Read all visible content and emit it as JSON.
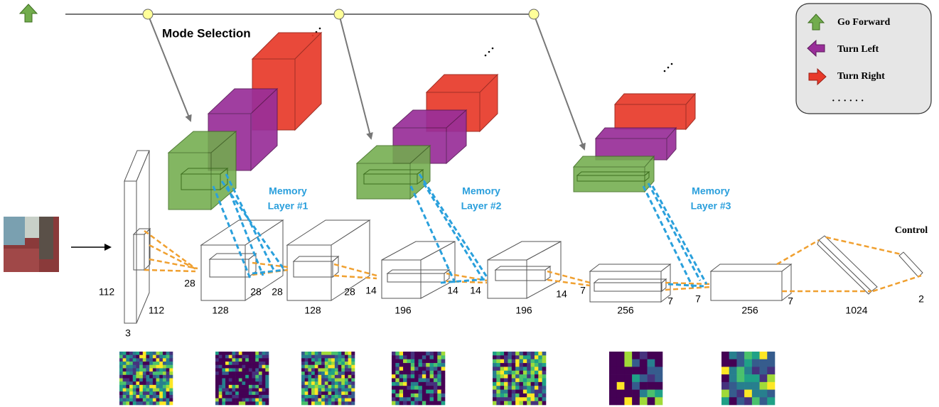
{
  "header": {
    "mode_selection": "Mode Selection"
  },
  "legend": {
    "items": [
      {
        "label": "Go Forward"
      },
      {
        "label": "Turn Left"
      },
      {
        "label": "Turn Right"
      }
    ],
    "more": "· · · · · ·"
  },
  "memory_layers": [
    {
      "line1": "Memory",
      "line2": "Layer #1"
    },
    {
      "line1": "Memory",
      "line2": "Layer #2"
    },
    {
      "line1": "Memory",
      "line2": "Layer #3"
    }
  ],
  "dimensions": [
    "112",
    "112",
    "3",
    "28",
    "28",
    "128",
    "28",
    "28",
    "128",
    "14",
    "14",
    "196",
    "14",
    "14",
    "196",
    "7",
    "7",
    "256",
    "7",
    "7",
    "256",
    "1024",
    "2"
  ],
  "output": {
    "label": "Control"
  }
}
